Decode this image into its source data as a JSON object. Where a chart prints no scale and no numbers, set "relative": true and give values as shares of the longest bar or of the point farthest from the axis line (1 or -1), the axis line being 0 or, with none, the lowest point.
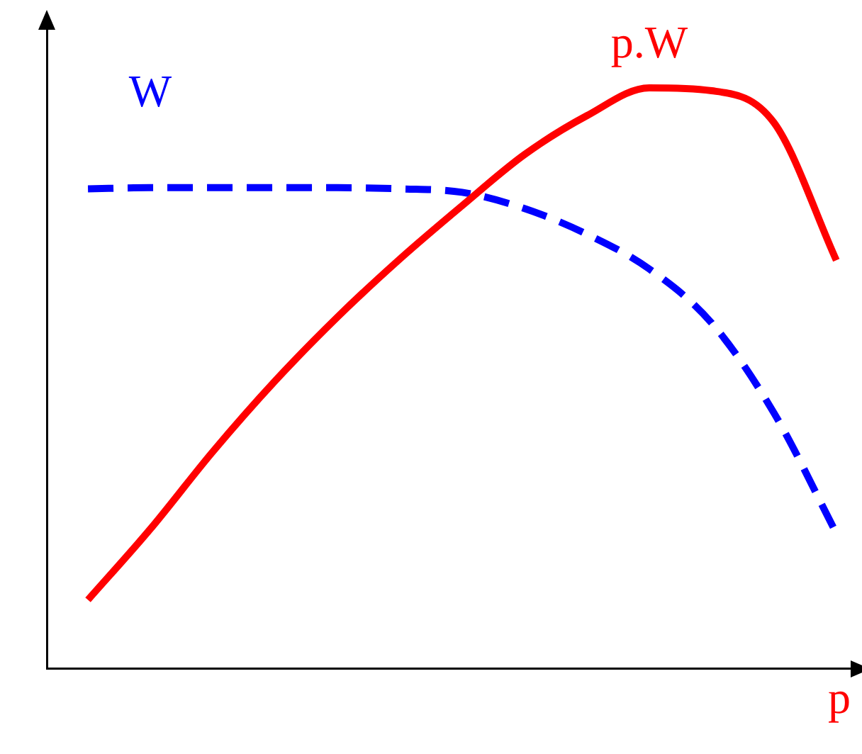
{
  "chart_data": {
    "type": "line",
    "relative": true,
    "xlabel": "p",
    "legend": false,
    "categories": [
      null,
      null,
      null,
      null,
      null,
      null,
      null,
      null,
      null,
      null,
      null,
      null,
      null
    ],
    "series": [
      {
        "name": "p.W",
        "color": "#ff0000",
        "line_style": "solid",
        "values": [
          0.118,
          0.24,
          0.373,
          0.495,
          0.605,
          0.705,
          0.797,
          0.885,
          0.952,
          1,
          0.995,
          0.94,
          0.703
        ]
      },
      {
        "name": "W",
        "color": "#0000ff",
        "line_style": "dashed",
        "values": [
          0.826,
          0.828,
          0.828,
          0.828,
          0.828,
          0.826,
          0.82,
          0.792,
          0.748,
          0.688,
          0.595,
          0.44,
          0.233
        ]
      }
    ]
  }
}
